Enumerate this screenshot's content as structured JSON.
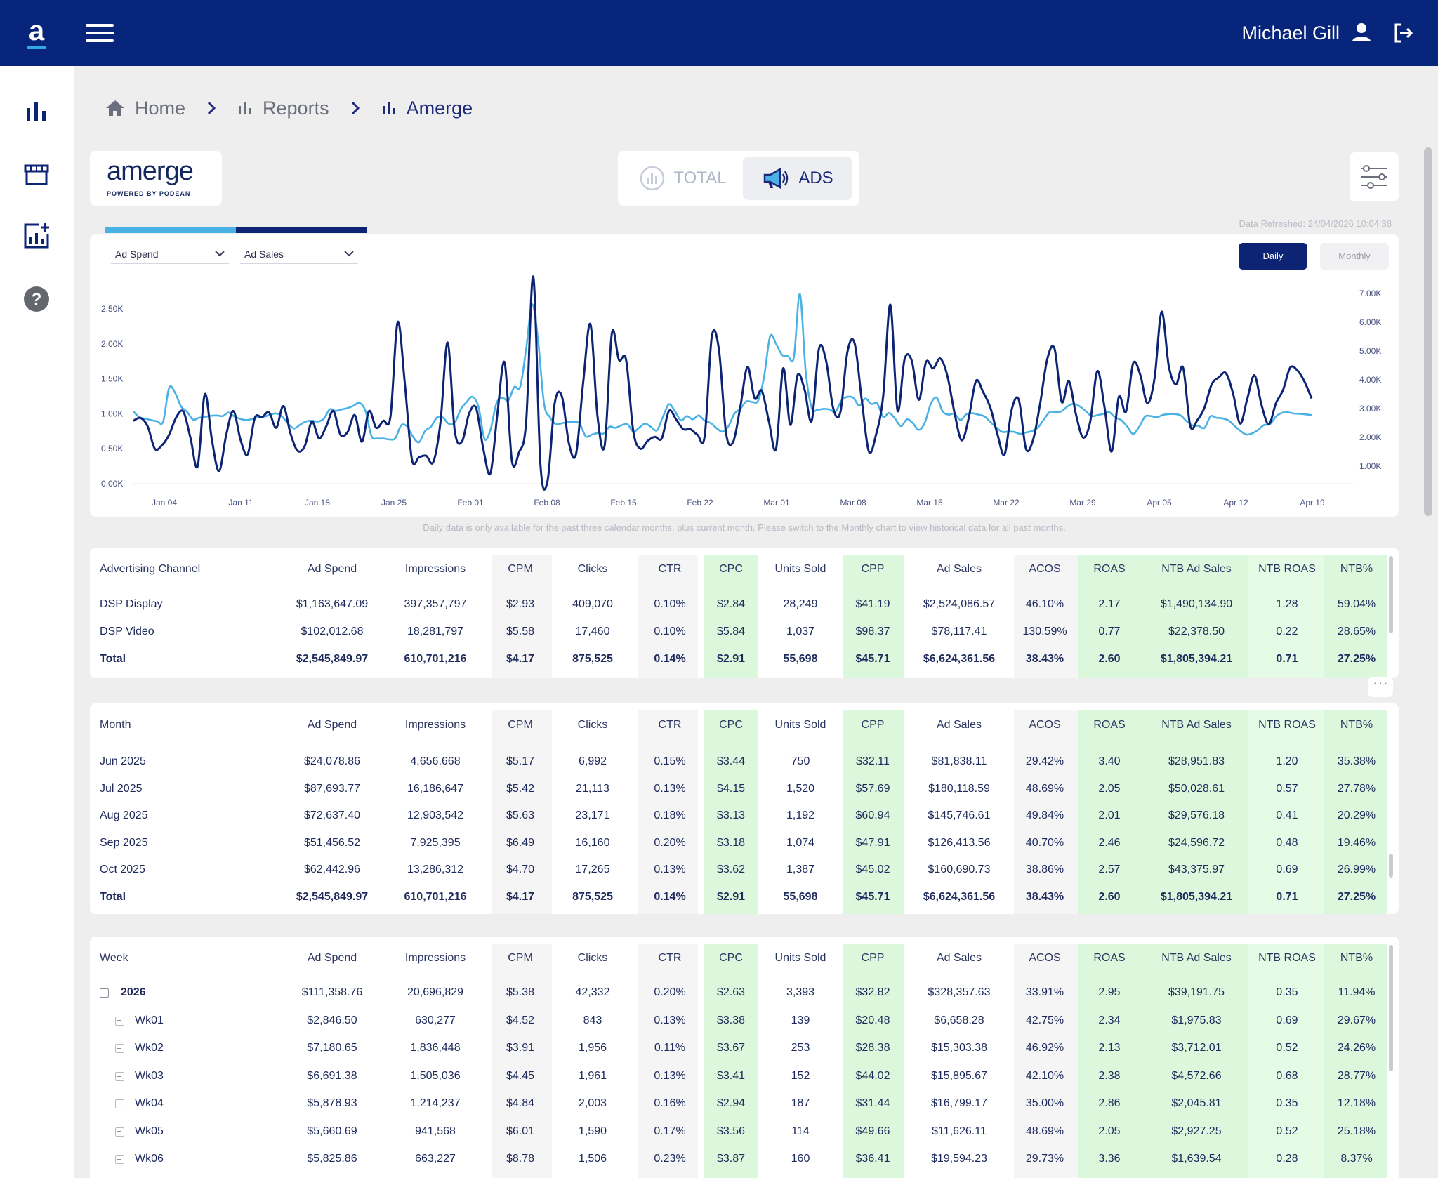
{
  "header": {
    "user_name": "Michael Gill"
  },
  "breadcrumb": {
    "home": "Home",
    "reports": "Reports",
    "current": "Amerge"
  },
  "brand": {
    "name": "amerge",
    "sub": "POWERED BY  PODEAN"
  },
  "toggle": {
    "total": "TOTAL",
    "ads": "ADS"
  },
  "chart_controls": {
    "left_metric": "Ad Spend",
    "right_metric": "Ad Sales",
    "daily": "Daily",
    "monthly": "Monthly",
    "refreshed": "Data Refreshed: 24/04/2026 10:04:38"
  },
  "chart_data": {
    "type": "line",
    "x_ticks": [
      "Jan 04",
      "Jan 11",
      "Jan 18",
      "Jan 25",
      "Feb 01",
      "Feb 08",
      "Feb 15",
      "Feb 22",
      "Mar 01",
      "Mar 08",
      "Mar 15",
      "Mar 22",
      "Mar 29",
      "Apr 05",
      "Apr 12",
      "Apr 19"
    ],
    "y_left_ticks": [
      "0.00K",
      "0.50K",
      "1.00K",
      "1.50K",
      "2.00K",
      "2.50K"
    ],
    "y_right_ticks": [
      "1.00K",
      "2.00K",
      "3.00K",
      "4.00K",
      "5.00K",
      "6.00K",
      "7.00K"
    ],
    "y_left_range": [
      0,
      2500
    ],
    "y_right_range": [
      1000,
      7000
    ],
    "series": [
      {
        "axis": "left",
        "color": "#0c2473",
        "values": [
          900,
          940,
          820,
          500,
          550,
          700,
          950,
          1030,
          650,
          250,
          1280,
          620,
          180,
          700,
          1040,
          630,
          420,
          940,
          950,
          1020,
          800,
          1110,
          720,
          470,
          540,
          890,
          650,
          820,
          1040,
          700,
          740,
          980,
          600,
          1040,
          800,
          900,
          960,
          2310,
          1450,
          350,
          380,
          400,
          310,
          880,
          2020,
          760,
          600,
          1000,
          1080,
          500,
          150,
          1030,
          1730,
          330,
          450,
          880,
          2960,
          270,
          40,
          1150,
          1250,
          570,
          430,
          1460,
          2280,
          960,
          550,
          2150,
          1770,
          1770,
          750,
          500,
          610,
          670,
          650,
          1040,
          920,
          780,
          780,
          700,
          680,
          2100,
          1920,
          720,
          600,
          1100,
          1670,
          1220,
          1330,
          890,
          500,
          1650,
          840,
          1550,
          1340,
          900,
          1930,
          1760,
          1080,
          1020,
          1890,
          2010,
          1200,
          460,
          700,
          1250,
          2560,
          1050,
          1780,
          1760,
          1200,
          1740,
          1650,
          1790,
          1540,
          1010,
          620,
          950,
          1470,
          1310,
          1090,
          710,
          420,
          1060,
          1200,
          500,
          630,
          1160,
          1790,
          1930,
          1170,
          1470,
          990,
          660,
          890,
          1610,
          1090,
          460,
          1240,
          1030,
          1720,
          1560,
          1150,
          1510,
          2460,
          1680,
          1420,
          1660,
          830,
          910,
          1090,
          1420,
          1520,
          1580,
          1290,
          860,
          1220,
          1550,
          1120,
          850,
          1150,
          1340,
          1660,
          1620,
          1460,
          1220
        ]
      },
      {
        "axis": "right",
        "color": "#49b1e4",
        "values": [
          2900,
          2700,
          2650,
          2600,
          2560,
          2550,
          3720,
          3550,
          3080,
          2890,
          2620,
          2680,
          2710,
          2750,
          2760,
          2740,
          2860,
          2720,
          2640,
          2600,
          2640,
          2710,
          2720,
          2790,
          2830,
          2720,
          2480,
          2310,
          2440,
          2550,
          2580,
          2550,
          2650,
          2970,
          2920,
          2970,
          3020,
          3100,
          3200,
          2920,
          2050,
          1960,
          1960,
          1930,
          1970,
          2420,
          2380,
          2020,
          1830,
          2220,
          2370,
          2690,
          2690,
          2470,
          2510,
          2970,
          3230,
          3410,
          3050,
          1950,
          2260,
          3180,
          3380,
          3280,
          3750,
          3760,
          5070,
          6620,
          5380,
          3180,
          2700,
          2460,
          2490,
          2530,
          2530,
          2480,
          2040,
          2090,
          2150,
          2130,
          2370,
          2330,
          2420,
          2460,
          2200,
          2340,
          2480,
          2360,
          2250,
          2720,
          3150,
          2910,
          2590,
          2740,
          2630,
          2760,
          2580,
          2500,
          2320,
          2200,
          2390,
          2820,
          2990,
          3250,
          3230,
          3280,
          4120,
          5510,
          5250,
          4870,
          4820,
          4790,
          6980,
          4250,
          3020,
          2960,
          2990,
          2970,
          2890,
          3280,
          3410,
          3370,
          3100,
          3350,
          3160,
          3180,
          2710,
          2850,
          2650,
          2390,
          2630,
          2490,
          2260,
          2510,
          3160,
          3380,
          2900,
          2790,
          2820,
          2600,
          2810,
          2840,
          2790,
          2730,
          2540,
          2350,
          2190,
          2200,
          2190,
          2120,
          2170,
          2220,
          2340,
          2620,
          2880,
          2870,
          2910,
          3080,
          3170,
          3080,
          2920,
          2740,
          2770,
          2820,
          2870,
          2690,
          2600,
          2380,
          2120,
          2360,
          2720,
          2740,
          2700,
          2780,
          2810,
          2810,
          2760,
          2560,
          2420,
          2400,
          2330,
          2730,
          2680,
          2660,
          2590,
          2410,
          2230,
          2100,
          2140,
          2260,
          2430,
          2460,
          2720,
          2850,
          2870,
          2830,
          2820,
          2800,
          2770
        ]
      }
    ]
  },
  "chart_note": "Daily data is only available for the past three calendar months, plus current month. Please switch to the Monthly chart to view historical data for all past months.",
  "columns": [
    "Ad Spend",
    "Impressions",
    "CPM",
    "Clicks",
    "CTR",
    "CPC",
    "Units Sold",
    "CPP",
    "Ad Sales",
    "ACOS",
    "ROAS",
    "NTB Ad Sales",
    "NTB ROAS",
    "NTB%"
  ],
  "channel_table": {
    "label": "Advertising Channel",
    "rows": [
      [
        "DSP Display",
        "$1,163,647.09",
        "397,357,797",
        "$2.93",
        "409,070",
        "0.10%",
        "$2.84",
        "28,249",
        "$41.19",
        "$2,524,086.57",
        "46.10%",
        "2.17",
        "$1,490,134.90",
        "1.28",
        "59.04%"
      ],
      [
        "DSP Video",
        "$102,012.68",
        "18,281,797",
        "$5.58",
        "17,460",
        "0.10%",
        "$5.84",
        "1,037",
        "$98.37",
        "$78,117.41",
        "130.59%",
        "0.77",
        "$22,378.50",
        "0.22",
        "28.65%"
      ],
      [
        "Total",
        "$2,545,849.97",
        "610,701,216",
        "$4.17",
        "875,525",
        "0.14%",
        "$2.91",
        "55,698",
        "$45.71",
        "$6,624,361.56",
        "38.43%",
        "2.60",
        "$1,805,394.21",
        "0.71",
        "27.25%"
      ]
    ]
  },
  "month_table": {
    "label": "Month",
    "rows": [
      [
        "Jun 2025",
        "$24,078.86",
        "4,656,668",
        "$5.17",
        "6,992",
        "0.15%",
        "$3.44",
        "750",
        "$32.11",
        "$81,838.11",
        "29.42%",
        "3.40",
        "$28,951.83",
        "1.20",
        "35.38%"
      ],
      [
        "Jul 2025",
        "$87,693.77",
        "16,186,647",
        "$5.42",
        "21,113",
        "0.13%",
        "$4.15",
        "1,520",
        "$57.69",
        "$180,118.59",
        "48.69%",
        "2.05",
        "$50,028.61",
        "0.57",
        "27.78%"
      ],
      [
        "Aug 2025",
        "$72,637.40",
        "12,903,542",
        "$5.63",
        "23,171",
        "0.18%",
        "$3.13",
        "1,192",
        "$60.94",
        "$145,746.61",
        "49.84%",
        "2.01",
        "$29,576.18",
        "0.41",
        "20.29%"
      ],
      [
        "Sep 2025",
        "$51,456.52",
        "7,925,395",
        "$6.49",
        "16,160",
        "0.20%",
        "$3.18",
        "1,074",
        "$47.91",
        "$126,413.56",
        "40.70%",
        "2.46",
        "$24,596.72",
        "0.48",
        "19.46%"
      ],
      [
        "Oct 2025",
        "$62,442.96",
        "13,286,312",
        "$4.70",
        "17,265",
        "0.13%",
        "$3.62",
        "1,387",
        "$45.02",
        "$160,690.73",
        "38.86%",
        "2.57",
        "$43,375.97",
        "0.69",
        "26.99%"
      ],
      [
        "Total",
        "$2,545,849.97",
        "610,701,216",
        "$4.17",
        "875,525",
        "0.14%",
        "$2.91",
        "55,698",
        "$45.71",
        "$6,624,361.56",
        "38.43%",
        "2.60",
        "$1,805,394.21",
        "0.71",
        "27.25%"
      ]
    ]
  },
  "week_table": {
    "label": "Week",
    "rows": [
      [
        "2026",
        "$111,358.76",
        "20,696,829",
        "$5.38",
        "42,332",
        "0.20%",
        "$2.63",
        "3,393",
        "$32.82",
        "$328,357.63",
        "33.91%",
        "2.95",
        "$39,191.75",
        "0.35",
        "11.94%"
      ],
      [
        "Wk01",
        "$2,846.50",
        "630,277",
        "$4.52",
        "843",
        "0.13%",
        "$3.38",
        "139",
        "$20.48",
        "$6,658.28",
        "42.75%",
        "2.34",
        "$1,975.83",
        "0.69",
        "29.67%"
      ],
      [
        "Wk02",
        "$7,180.65",
        "1,836,448",
        "$3.91",
        "1,956",
        "0.11%",
        "$3.67",
        "253",
        "$28.38",
        "$15,303.38",
        "46.92%",
        "2.13",
        "$3,712.01",
        "0.52",
        "24.26%"
      ],
      [
        "Wk03",
        "$6,691.38",
        "1,505,036",
        "$4.45",
        "1,961",
        "0.13%",
        "$3.41",
        "152",
        "$44.02",
        "$15,895.67",
        "42.10%",
        "2.38",
        "$4,572.66",
        "0.68",
        "28.77%"
      ],
      [
        "Wk04",
        "$5,878.93",
        "1,214,237",
        "$4.84",
        "2,003",
        "0.16%",
        "$2.94",
        "187",
        "$31.44",
        "$16,799.17",
        "35.00%",
        "2.86",
        "$2,045.81",
        "0.35",
        "12.18%"
      ],
      [
        "Wk05",
        "$5,660.69",
        "941,568",
        "$6.01",
        "1,590",
        "0.17%",
        "$3.56",
        "114",
        "$49.66",
        "$11,626.11",
        "48.69%",
        "2.05",
        "$2,927.25",
        "0.52",
        "25.18%"
      ],
      [
        "Wk06",
        "$5,825.86",
        "663,227",
        "$8.78",
        "1,506",
        "0.23%",
        "$3.87",
        "160",
        "$36.41",
        "$19,594.23",
        "29.73%",
        "3.36",
        "$1,639.54",
        "0.28",
        "8.37%"
      ]
    ]
  }
}
